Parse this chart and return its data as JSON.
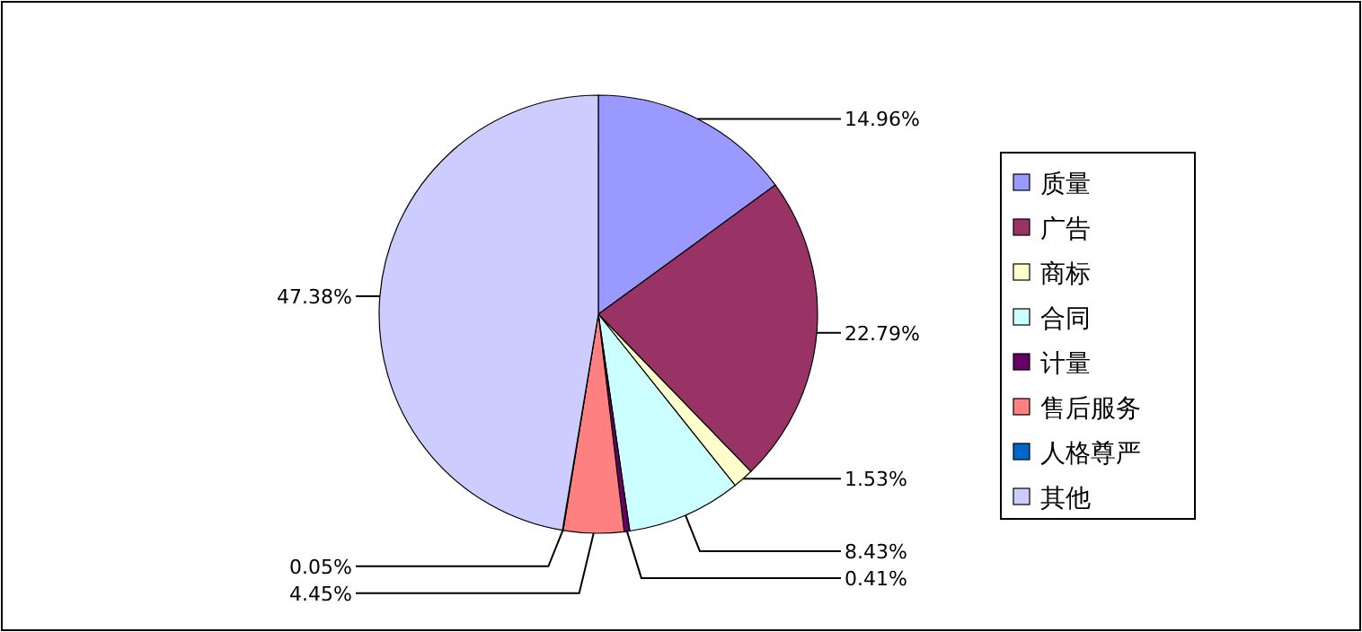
{
  "chart_data": {
    "type": "pie",
    "categories": [
      "质量",
      "广告",
      "商标",
      "合同",
      "计量",
      "售后服务",
      "人格尊严",
      "其他"
    ],
    "values": [
      14.96,
      22.79,
      1.53,
      8.43,
      0.41,
      4.45,
      0.05,
      47.38
    ],
    "colors": [
      "#9999ff",
      "#993366",
      "#ffffcc",
      "#ccffff",
      "#660066",
      "#ff8080",
      "#0066cc",
      "#ccccff"
    ],
    "value_labels": [
      "14.96%",
      "22.79%",
      "1.53%",
      "8.43%",
      "0.41%",
      "4.45%",
      "0.05%",
      "47.38%"
    ],
    "legend": "right"
  }
}
